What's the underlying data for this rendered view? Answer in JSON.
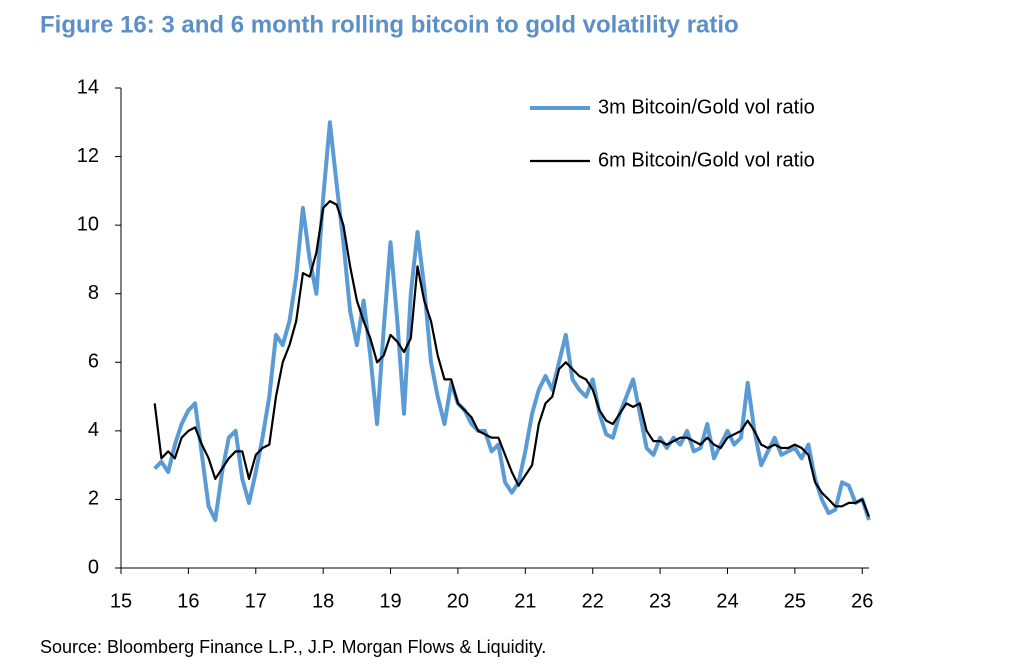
{
  "chart_data": {
    "type": "line",
    "title": "Figure 16: 3 and 6 month rolling bitcoin to gold volatility ratio",
    "source": "Source: Bloomberg Finance L.P., J.P. Morgan Flows & Liquidity.",
    "x": [
      15.5,
      15.6,
      15.7,
      15.8,
      15.9,
      16.0,
      16.1,
      16.2,
      16.3,
      16.4,
      16.5,
      16.6,
      16.7,
      16.8,
      16.9,
      17.0,
      17.1,
      17.2,
      17.3,
      17.4,
      17.5,
      17.6,
      17.7,
      17.8,
      17.9,
      18.0,
      18.1,
      18.2,
      18.3,
      18.4,
      18.5,
      18.6,
      18.7,
      18.8,
      18.9,
      19.0,
      19.1,
      19.2,
      19.3,
      19.4,
      19.5,
      19.6,
      19.7,
      19.8,
      19.9,
      20.0,
      20.1,
      20.2,
      20.3,
      20.4,
      20.5,
      20.6,
      20.7,
      20.8,
      20.9,
      21.0,
      21.1,
      21.2,
      21.3,
      21.4,
      21.5,
      21.6,
      21.7,
      21.8,
      21.9,
      22.0,
      22.1,
      22.2,
      22.3,
      22.4,
      22.5,
      22.6,
      22.7,
      22.8,
      22.9,
      23.0,
      23.1,
      23.2,
      23.3,
      23.4,
      23.5,
      23.6,
      23.7,
      23.8,
      23.9,
      24.0,
      24.1,
      24.2,
      24.3,
      24.4,
      24.5,
      24.6,
      24.7,
      24.8,
      24.9,
      25.0,
      25.1,
      25.2,
      25.3,
      25.4,
      25.5,
      25.6,
      25.7,
      25.8,
      25.9,
      26.0,
      26.1
    ],
    "series": [
      {
        "name": "3m Bitcoin/Gold vol ratio",
        "color": "#5b9bd5",
        "width": 4,
        "values": [
          2.9,
          3.1,
          2.8,
          3.6,
          4.2,
          4.6,
          4.8,
          3.3,
          1.8,
          1.4,
          2.8,
          3.8,
          4.0,
          2.6,
          1.9,
          2.8,
          3.8,
          5.0,
          6.8,
          6.5,
          7.2,
          8.5,
          10.5,
          9.0,
          8.0,
          10.8,
          13.0,
          11.2,
          9.5,
          7.5,
          6.5,
          7.8,
          6.2,
          4.2,
          7.0,
          9.5,
          7.2,
          4.5,
          8.0,
          9.8,
          8.2,
          6.0,
          5.0,
          4.2,
          5.4,
          4.8,
          4.6,
          4.2,
          4.0,
          4.0,
          3.4,
          3.6,
          2.5,
          2.2,
          2.5,
          3.4,
          4.5,
          5.2,
          5.6,
          5.2,
          6.0,
          6.8,
          5.5,
          5.2,
          5.0,
          5.5,
          4.5,
          3.9,
          3.8,
          4.5,
          5.0,
          5.5,
          4.5,
          3.5,
          3.3,
          3.8,
          3.5,
          3.8,
          3.6,
          4.0,
          3.4,
          3.5,
          4.2,
          3.2,
          3.6,
          4.0,
          3.6,
          3.8,
          5.4,
          4.0,
          3.0,
          3.4,
          3.8,
          3.3,
          3.4,
          3.5,
          3.2,
          3.6,
          2.6,
          2.0,
          1.6,
          1.7,
          2.5,
          2.4,
          1.9,
          2.0,
          1.4
        ]
      },
      {
        "name": "6m Bitcoin/Gold vol ratio",
        "color": "#000000",
        "width": 2.2,
        "values": [
          4.8,
          3.2,
          3.4,
          3.2,
          3.8,
          4.0,
          4.1,
          3.6,
          3.2,
          2.6,
          2.9,
          3.2,
          3.4,
          3.4,
          2.6,
          3.3,
          3.5,
          3.6,
          5.0,
          6.0,
          6.5,
          7.2,
          8.6,
          8.5,
          9.2,
          10.5,
          10.7,
          10.6,
          10.0,
          8.8,
          7.8,
          7.2,
          6.7,
          6.0,
          6.2,
          6.8,
          6.6,
          6.3,
          6.7,
          8.8,
          7.8,
          7.2,
          6.2,
          5.5,
          5.5,
          4.8,
          4.6,
          4.4,
          4.0,
          3.9,
          3.8,
          3.8,
          3.3,
          2.8,
          2.4,
          2.7,
          3.0,
          4.2,
          4.8,
          5.0,
          5.8,
          6.0,
          5.8,
          5.6,
          5.5,
          5.2,
          4.6,
          4.3,
          4.2,
          4.5,
          4.8,
          4.7,
          4.8,
          4.0,
          3.7,
          3.7,
          3.6,
          3.7,
          3.8,
          3.8,
          3.7,
          3.6,
          3.8,
          3.6,
          3.5,
          3.8,
          3.9,
          4.0,
          4.3,
          4.0,
          3.6,
          3.5,
          3.6,
          3.5,
          3.5,
          3.6,
          3.5,
          3.3,
          2.5,
          2.2,
          2.0,
          1.8,
          1.8,
          1.9,
          1.9,
          2.0,
          1.5
        ]
      }
    ],
    "xlim": [
      15,
      26.1
    ],
    "xticks": [
      15,
      16,
      17,
      18,
      19,
      20,
      21,
      22,
      23,
      24,
      25,
      26
    ],
    "ylim": [
      0,
      14
    ],
    "yticks": [
      0,
      2,
      4,
      6,
      8,
      10,
      12,
      14
    ],
    "grid": false,
    "legend": "top-right"
  }
}
